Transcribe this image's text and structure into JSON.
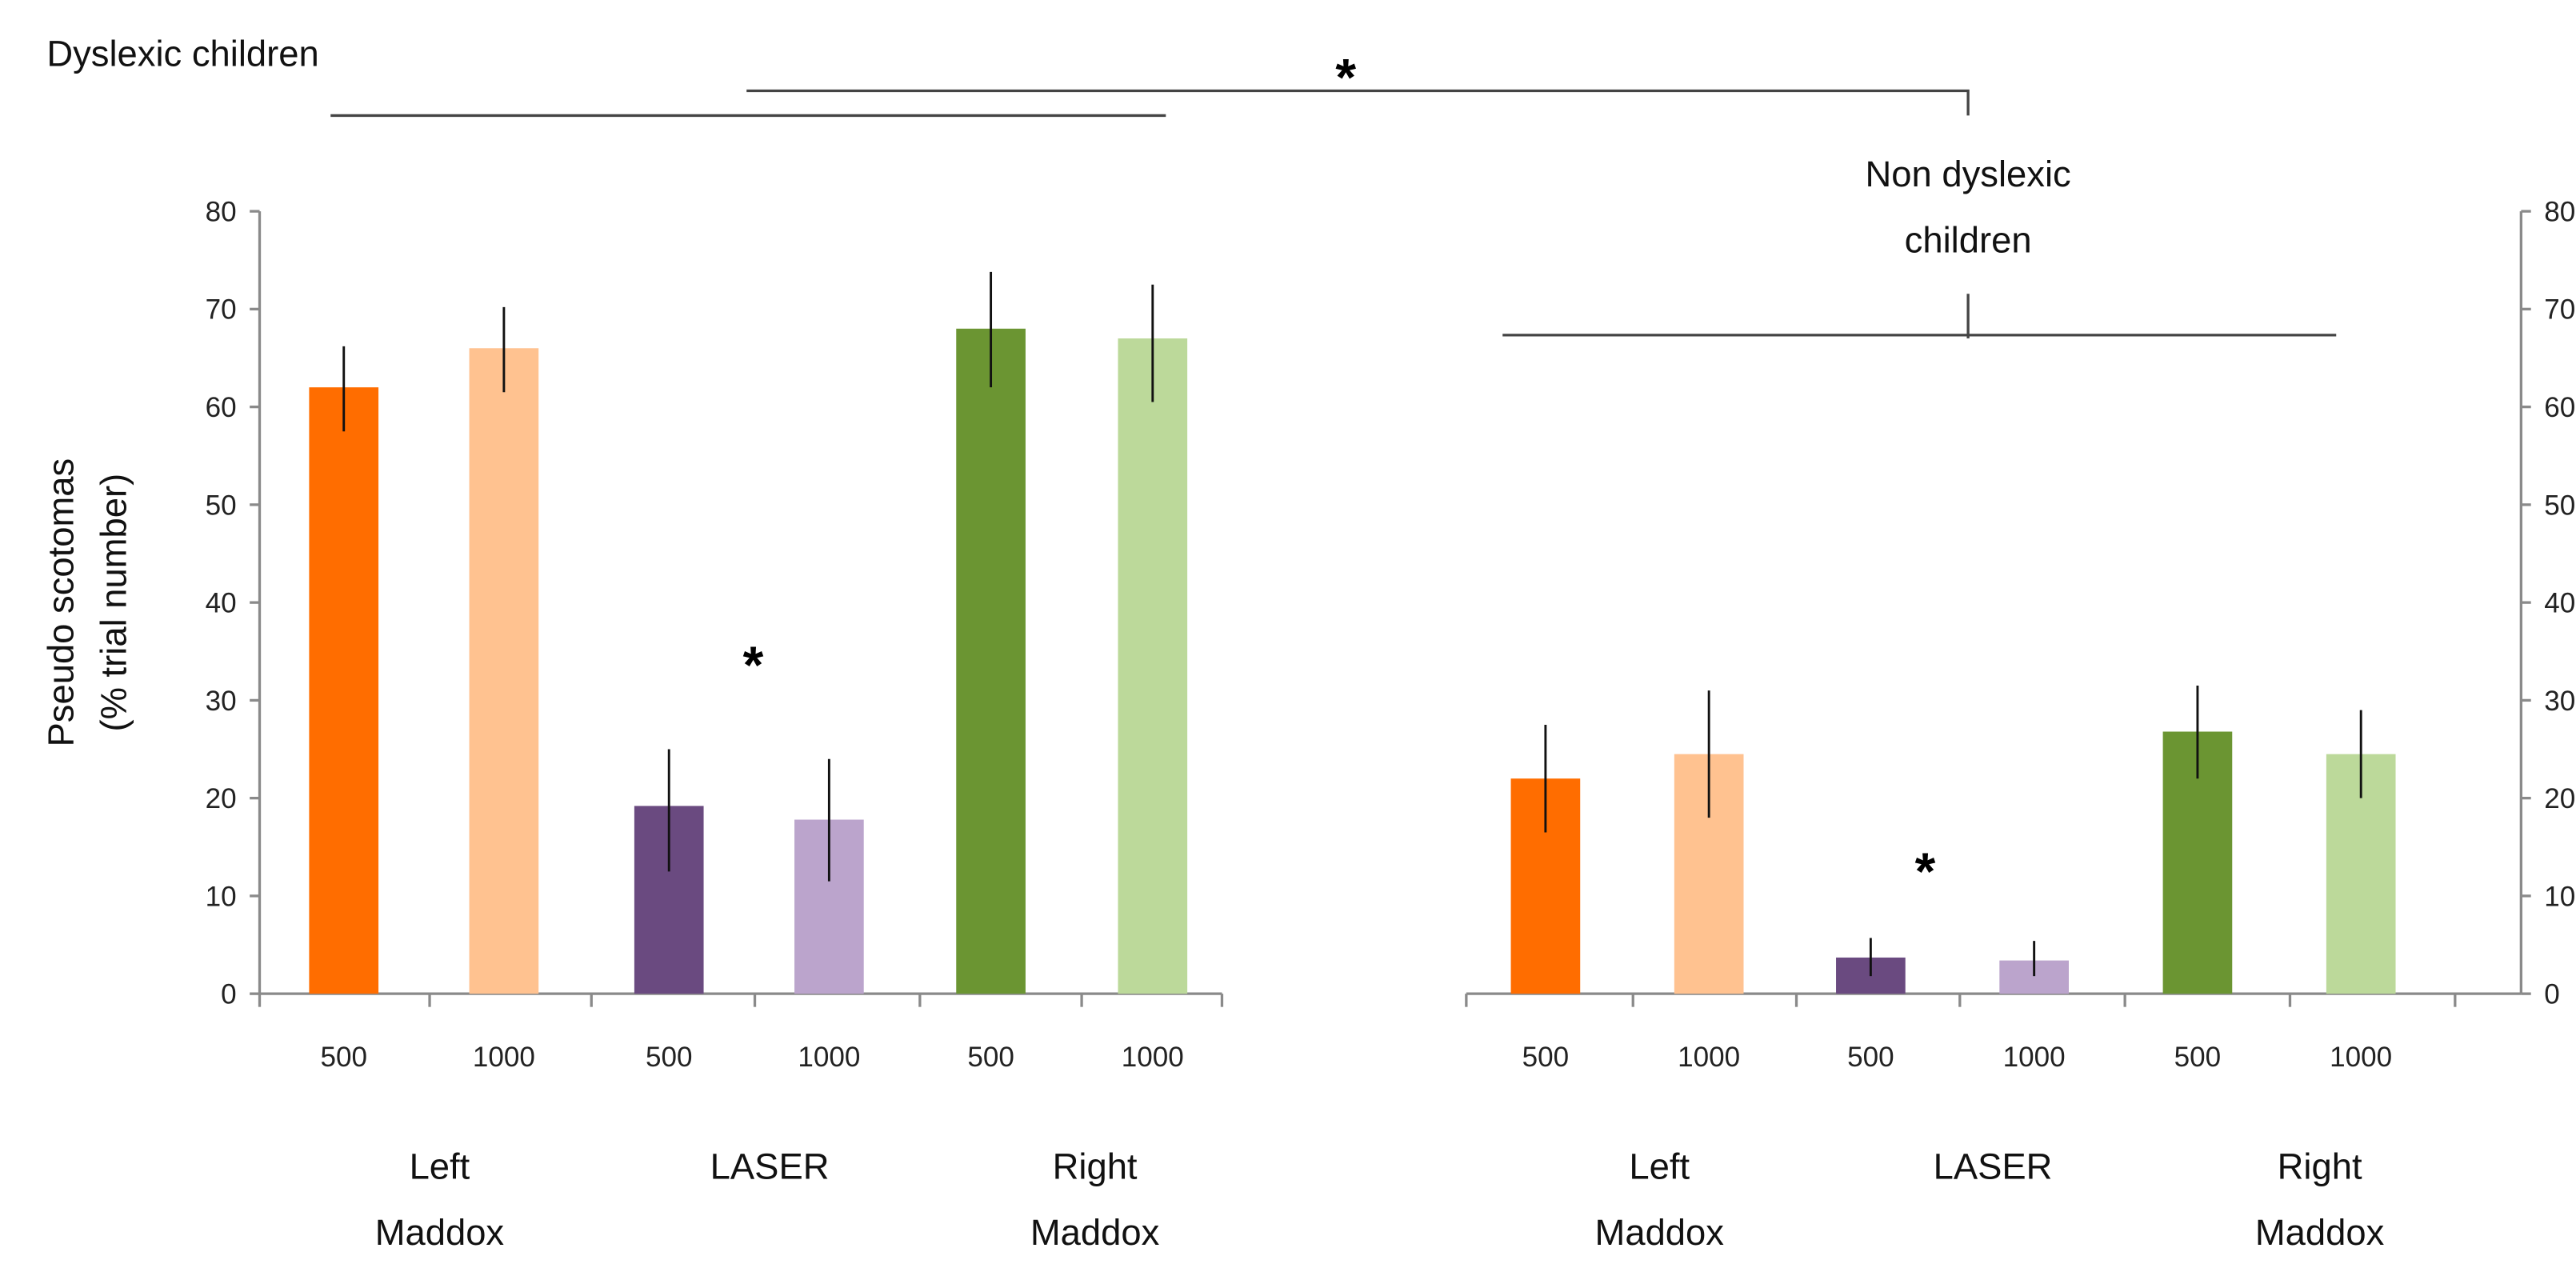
{
  "chart_data": {
    "type": "bar",
    "ylabel": [
      "Pseudo scotomas",
      "(% trial number)"
    ],
    "ylim": [
      0,
      80
    ],
    "yticks": [
      0,
      10,
      20,
      30,
      40,
      50,
      60,
      70,
      80
    ],
    "grid": false,
    "categories": [
      "500",
      "1000",
      "500",
      "1000",
      "500",
      "1000"
    ],
    "groups": [
      [
        "Left",
        "Maddox"
      ],
      [
        "LASER"
      ],
      [
        "Right",
        "Maddox"
      ]
    ],
    "colors": [
      "#ff6d00",
      "#ffc290",
      "#6a4a80",
      "#bba4cc",
      "#6b9532",
      "#bcd99a"
    ],
    "panels": [
      {
        "title": "Dyslexic children",
        "values": [
          62,
          66,
          19.2,
          17.8,
          68,
          67
        ],
        "err_low": [
          57.5,
          61.5,
          12.5,
          11.5,
          62,
          60.5
        ],
        "err_high": [
          66.2,
          70.2,
          25,
          24,
          73.8,
          72.5
        ],
        "annotation": "*"
      },
      {
        "title": [
          "Non dyslexic children"
        ],
        "title_lines": [
          "Non dyslexic",
          "children"
        ],
        "values": [
          22,
          24.5,
          3.7,
          3.4,
          26.8,
          24.5
        ],
        "err_low": [
          16.5,
          18,
          1.8,
          1.8,
          22,
          20
        ],
        "err_high": [
          27.5,
          31,
          5.7,
          5.4,
          31.5,
          29
        ],
        "annotation": "*"
      }
    ],
    "between_groups_annotation": "*"
  }
}
